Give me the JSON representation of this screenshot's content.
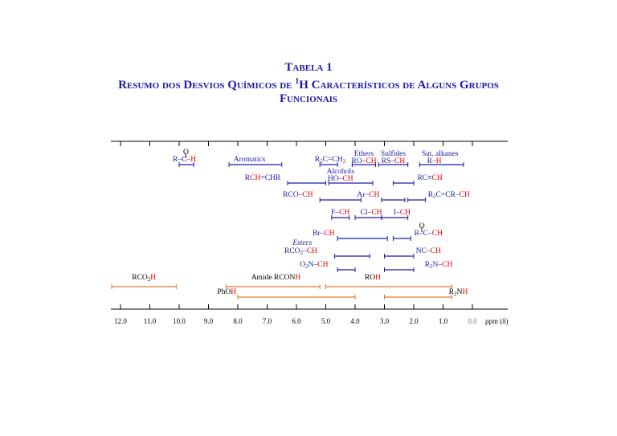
{
  "title": {
    "line1": "Tabela 1",
    "line2a": "Resumo dos Desvios Químicos de ",
    "line2sup": "1",
    "line2b": "H Característicos de Alguns Grupos",
    "line3": "Funcionais"
  },
  "chart_data": {
    "type": "range",
    "xlabel": "ppm (δ)",
    "xlim": [
      12,
      0
    ],
    "ticks": [
      {
        "v": 12,
        "label": "12.0"
      },
      {
        "v": 11,
        "label": "11.0"
      },
      {
        "v": 10,
        "label": "10.0"
      },
      {
        "v": 9,
        "label": "9.0"
      },
      {
        "v": 8,
        "label": "8.0"
      },
      {
        "v": 7,
        "label": "7.0"
      },
      {
        "v": 6,
        "label": "6.0"
      },
      {
        "v": 5,
        "label": "5.0"
      },
      {
        "v": 4,
        "label": "4.0"
      },
      {
        "v": 3,
        "label": "3.0"
      },
      {
        "v": 2,
        "label": "2.0"
      },
      {
        "v": 1,
        "label": "1.0"
      },
      {
        "v": 0,
        "label": "0.0"
      }
    ],
    "colors": {
      "blue": "#1a1aa6",
      "red": "#e00000",
      "orange": "#d97a2a",
      "black": "#000000"
    },
    "ranges": [
      {
        "from": 10.0,
        "to": 9.5,
        "row": 1,
        "color": "blue"
      },
      {
        "from": 8.3,
        "to": 6.5,
        "row": 1,
        "color": "blue"
      },
      {
        "from": 5.2,
        "to": 4.6,
        "row": 1,
        "color": "blue"
      },
      {
        "from": 4.1,
        "to": 3.3,
        "row": 1,
        "color": "blue"
      },
      {
        "from": 3.2,
        "to": 2.2,
        "row": 1,
        "color": "blue"
      },
      {
        "from": 1.8,
        "to": 0.3,
        "row": 1,
        "color": "blue"
      },
      {
        "from": 6.3,
        "to": 5.0,
        "row": 2,
        "color": "blue"
      },
      {
        "from": 4.9,
        "to": 3.4,
        "row": 2,
        "color": "blue"
      },
      {
        "from": 2.7,
        "to": 2.0,
        "row": 2,
        "color": "blue"
      },
      {
        "from": 5.2,
        "to": 3.8,
        "row": 3,
        "color": "blue"
      },
      {
        "from": 3.1,
        "to": 2.3,
        "row": 3,
        "color": "blue"
      },
      {
        "from": 2.2,
        "to": 1.6,
        "row": 3,
        "color": "blue"
      },
      {
        "from": 4.8,
        "to": 4.2,
        "row": 4,
        "color": "blue"
      },
      {
        "from": 4.0,
        "to": 3.1,
        "row": 4,
        "color": "blue"
      },
      {
        "from": 3.1,
        "to": 2.2,
        "row": 4,
        "color": "blue"
      },
      {
        "from": 4.6,
        "to": 2.9,
        "row": 5,
        "color": "blue"
      },
      {
        "from": 2.7,
        "to": 2.1,
        "row": 5,
        "color": "blue"
      },
      {
        "from": 4.7,
        "to": 3.5,
        "row": 6,
        "color": "blue"
      },
      {
        "from": 3.0,
        "to": 2.0,
        "row": 6,
        "color": "blue"
      },
      {
        "from": 4.6,
        "to": 4.0,
        "row": 7,
        "color": "blue"
      },
      {
        "from": 3.0,
        "to": 2.0,
        "row": 7,
        "color": "blue"
      },
      {
        "from": 12.3,
        "to": 10.1,
        "row": 8,
        "color": "orange"
      },
      {
        "from": 8.4,
        "to": 5.2,
        "row": 8,
        "color": "orange"
      },
      {
        "from": 5.0,
        "to": 0.7,
        "row": 8,
        "color": "orange"
      },
      {
        "from": 8.0,
        "to": 4.0,
        "row": 9,
        "color": "orange"
      },
      {
        "from": 3.0,
        "to": 0.7,
        "row": 9,
        "color": "orange"
      }
    ],
    "labels": [
      {
        "row": 1,
        "x": 9.82,
        "ya": 0,
        "align": "middle",
        "parts": [
          {
            "t": "R–C",
            "c": "blue"
          },
          {
            "t": "–H",
            "c": "red"
          }
        ]
      },
      {
        "row": 1,
        "x": 9.77,
        "ya": -9,
        "align": "middle",
        "parts": [
          {
            "t": "O",
            "c": "black"
          }
        ]
      },
      {
        "row": 1,
        "x": 9.77,
        "ya": -4,
        "align": "middle",
        "parts": [
          {
            "t": "‖",
            "c": "black"
          }
        ]
      },
      {
        "row": 1,
        "x": 7.6,
        "ya": 0,
        "align": "middle",
        "parts": [
          {
            "t": "Aromatics",
            "c": "blue"
          }
        ]
      },
      {
        "row": 1,
        "x": 4.85,
        "ya": 0,
        "align": "middle",
        "parts": [
          {
            "t": "R",
            "c": "blue"
          },
          {
            "t": "2",
            "c": "blue",
            "sub": true
          },
          {
            "t": "C=CH",
            "c": "blue"
          },
          {
            "t": "2",
            "c": "red",
            "sub": true
          }
        ]
      },
      {
        "row": 1,
        "x": 3.7,
        "ya": -7,
        "align": "middle",
        "parts": [
          {
            "t": "Ethers",
            "c": "blue"
          }
        ]
      },
      {
        "row": 1,
        "x": 3.7,
        "ya": 2,
        "align": "middle",
        "parts": [
          {
            "t": "RO–",
            "c": "blue"
          },
          {
            "t": "CH",
            "c": "red"
          }
        ]
      },
      {
        "row": 1,
        "x": 2.7,
        "ya": -7,
        "align": "middle",
        "parts": [
          {
            "t": "Sulfides",
            "c": "blue"
          }
        ]
      },
      {
        "row": 1,
        "x": 2.7,
        "ya": 2,
        "align": "middle",
        "parts": [
          {
            "t": "RS–",
            "c": "blue"
          },
          {
            "t": "CH",
            "c": "red"
          }
        ]
      },
      {
        "row": 1,
        "x": 1.1,
        "ya": -7,
        "align": "middle",
        "parts": [
          {
            "t": "Sat. alkanes",
            "c": "blue"
          }
        ]
      },
      {
        "row": 1,
        "x": 1.3,
        "ya": 2,
        "align": "middle",
        "parts": [
          {
            "t": "R–",
            "c": "blue"
          },
          {
            "t": "H",
            "c": "red"
          }
        ]
      },
      {
        "row": 2,
        "x": 7.15,
        "ya": 0,
        "align": "middle",
        "parts": [
          {
            "t": "R",
            "c": "blue"
          },
          {
            "t": "CH",
            "c": "red"
          },
          {
            "t": "=CHR",
            "c": "blue"
          }
        ]
      },
      {
        "row": 2,
        "x": 4.5,
        "ya": -8,
        "align": "middle",
        "parts": [
          {
            "t": "Alcohols",
            "c": "blue"
          }
        ]
      },
      {
        "row": 2,
        "x": 4.5,
        "ya": 1,
        "align": "middle",
        "parts": [
          {
            "t": "HO–",
            "c": "blue"
          },
          {
            "t": "CH",
            "c": "red"
          }
        ]
      },
      {
        "row": 2,
        "x": 1.45,
        "ya": 0,
        "align": "middle",
        "parts": [
          {
            "t": "RC≡",
            "c": "blue"
          },
          {
            "t": "CH",
            "c": "red"
          }
        ]
      },
      {
        "row": 3,
        "x": 5.95,
        "ya": 0,
        "align": "middle",
        "parts": [
          {
            "t": "RCO–",
            "c": "blue"
          },
          {
            "t": "CH",
            "c": "red"
          }
        ]
      },
      {
        "row": 3,
        "x": 3.55,
        "ya": 0,
        "align": "middle",
        "parts": [
          {
            "t": "Ar–",
            "c": "blue"
          },
          {
            "t": "CH",
            "c": "red"
          }
        ]
      },
      {
        "row": 3,
        "x": 0.8,
        "ya": 0,
        "align": "middle",
        "parts": [
          {
            "t": "R",
            "c": "blue"
          },
          {
            "t": "2",
            "c": "blue",
            "sub": true
          },
          {
            "t": "C=CR–",
            "c": "blue"
          },
          {
            "t": "CH",
            "c": "red"
          }
        ]
      },
      {
        "row": 4,
        "x": 4.5,
        "ya": 0,
        "align": "middle",
        "parts": [
          {
            "t": "F–",
            "c": "blue"
          },
          {
            "t": "CH",
            "c": "red"
          }
        ]
      },
      {
        "row": 4,
        "x": 3.45,
        "ya": 0,
        "align": "middle",
        "parts": [
          {
            "t": "Cl–",
            "c": "blue"
          },
          {
            "t": "CH",
            "c": "red"
          }
        ]
      },
      {
        "row": 4,
        "x": 2.4,
        "ya": 0,
        "align": "middle",
        "parts": [
          {
            "t": "I–",
            "c": "blue"
          },
          {
            "t": "CH",
            "c": "red"
          }
        ]
      },
      {
        "row": 5,
        "x": 4.7,
        "ya": 0,
        "align": "end",
        "parts": [
          {
            "t": "Br–",
            "c": "blue"
          },
          {
            "t": "CH",
            "c": "red"
          }
        ]
      },
      {
        "row": 5,
        "x": 1.5,
        "ya": 0,
        "align": "middle",
        "parts": [
          {
            "t": "R–C–",
            "c": "blue"
          },
          {
            "t": "CH",
            "c": "red"
          }
        ]
      },
      {
        "row": 5,
        "x": 1.72,
        "ya": -9,
        "align": "middle",
        "parts": [
          {
            "t": "O",
            "c": "black"
          }
        ]
      },
      {
        "row": 5,
        "x": 1.72,
        "ya": -4,
        "align": "middle",
        "parts": [
          {
            "t": "‖",
            "c": "black"
          }
        ]
      },
      {
        "row": 6,
        "x": 5.8,
        "ya": -10,
        "align": "middle",
        "parts": [
          {
            "t": "Esters",
            "c": "blue",
            "italic": true
          }
        ]
      },
      {
        "row": 6,
        "x": 5.85,
        "ya": 0,
        "align": "middle",
        "parts": [
          {
            "t": "RCO",
            "c": "blue"
          },
          {
            "t": "2",
            "c": "blue",
            "sub": true
          },
          {
            "t": "–",
            "c": "blue"
          },
          {
            "t": "CH",
            "c": "red"
          }
        ]
      },
      {
        "row": 6,
        "x": 1.5,
        "ya": 0,
        "align": "middle",
        "parts": [
          {
            "t": "NC–",
            "c": "blue"
          },
          {
            "t": "CH",
            "c": "red"
          }
        ]
      },
      {
        "row": 7,
        "x": 5.4,
        "ya": 0,
        "align": "middle",
        "parts": [
          {
            "t": "O",
            "c": "blue"
          },
          {
            "t": "2",
            "c": "blue",
            "sub": true
          },
          {
            "t": "N–",
            "c": "blue"
          },
          {
            "t": "CH",
            "c": "red"
          }
        ]
      },
      {
        "row": 7,
        "x": 1.15,
        "ya": 0,
        "align": "middle",
        "parts": [
          {
            "t": "R",
            "c": "blue"
          },
          {
            "t": "2",
            "c": "blue",
            "sub": true
          },
          {
            "t": "N–",
            "c": "blue"
          },
          {
            "t": "CH",
            "c": "red"
          }
        ]
      },
      {
        "row": 8,
        "x": 11.2,
        "ya": -5,
        "align": "middle",
        "parts": [
          {
            "t": "RCO",
            "c": "black"
          },
          {
            "t": "2",
            "c": "black",
            "sub": true
          },
          {
            "t": "H",
            "c": "red"
          }
        ]
      },
      {
        "row": 8,
        "x": 6.7,
        "ya": -5,
        "align": "middle",
        "parts": [
          {
            "t": "Amide RCON",
            "c": "black"
          },
          {
            "t": "H",
            "c": "red"
          }
        ]
      },
      {
        "row": 8,
        "x": 3.4,
        "ya": -5,
        "align": "middle",
        "parts": [
          {
            "t": "RO",
            "c": "black"
          },
          {
            "t": "H",
            "c": "red"
          }
        ]
      },
      {
        "row": 9,
        "x": 8.05,
        "ya": 0,
        "align": "end",
        "parts": [
          {
            "t": "PhO",
            "c": "black"
          },
          {
            "t": "H",
            "c": "red"
          }
        ]
      },
      {
        "row": 9,
        "x": 0.8,
        "ya": 0,
        "align": "start",
        "parts": [
          {
            "t": "R",
            "c": "black"
          },
          {
            "t": "2",
            "c": "black",
            "sub": true
          },
          {
            "t": "N",
            "c": "black"
          },
          {
            "t": "H",
            "c": "red"
          }
        ]
      }
    ]
  }
}
